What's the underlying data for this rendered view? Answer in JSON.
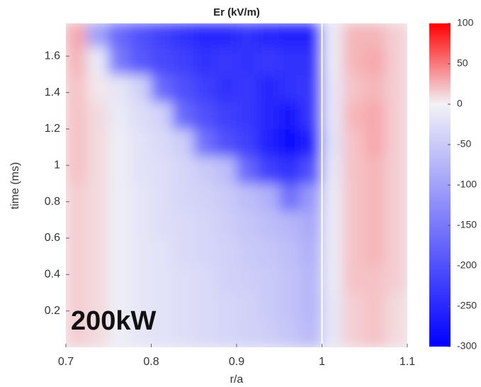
{
  "chart_data": {
    "type": "heatmap",
    "title": "Er (kV/m)",
    "x_label": "r/a",
    "y_label": "time (ms)",
    "annotation": "200kW",
    "x_edges": [
      0.7,
      0.725,
      0.75,
      0.775,
      0.8,
      0.825,
      0.85,
      0.875,
      0.9,
      0.925,
      0.95,
      0.975,
      1.0,
      1.025,
      1.05,
      1.075,
      1.1
    ],
    "y_edges": [
      0,
      0.15,
      0.3,
      0.45,
      0.6,
      0.75,
      0.9,
      1.05,
      1.2,
      1.35,
      1.5,
      1.65,
      1.78
    ],
    "values": [
      [
        15,
        10,
        -5,
        -15,
        -20,
        -25,
        -30,
        -35,
        -40,
        -45,
        -55,
        -70,
        -15,
        15,
        20,
        10
      ],
      [
        15,
        10,
        -5,
        -15,
        -20,
        -25,
        -30,
        -35,
        -40,
        -50,
        -60,
        -75,
        -15,
        15,
        20,
        10
      ],
      [
        15,
        10,
        -5,
        -15,
        -20,
        -25,
        -30,
        -40,
        -45,
        -50,
        -60,
        -75,
        -10,
        20,
        20,
        15
      ],
      [
        15,
        10,
        -5,
        -15,
        -20,
        -30,
        -35,
        -40,
        -50,
        -55,
        -65,
        -80,
        -10,
        20,
        25,
        15
      ],
      [
        15,
        10,
        -5,
        -15,
        -25,
        -30,
        -35,
        -45,
        -55,
        -65,
        -75,
        -90,
        -10,
        20,
        25,
        15
      ],
      [
        15,
        10,
        -5,
        -15,
        -25,
        -35,
        -40,
        -50,
        -65,
        -80,
        -160,
        -110,
        -10,
        20,
        25,
        15
      ],
      [
        20,
        10,
        -5,
        -20,
        -25,
        -35,
        -50,
        -65,
        -170,
        -220,
        -240,
        -200,
        -15,
        20,
        25,
        15
      ],
      [
        20,
        10,
        -5,
        -20,
        -30,
        -45,
        -160,
        -200,
        -220,
        -260,
        -290,
        -260,
        -20,
        20,
        30,
        15
      ],
      [
        20,
        10,
        -10,
        -25,
        -40,
        -170,
        -200,
        -220,
        -230,
        -250,
        -270,
        -230,
        -15,
        25,
        30,
        15
      ],
      [
        20,
        5,
        -15,
        -40,
        -170,
        -200,
        -220,
        -240,
        -230,
        -250,
        -240,
        -230,
        -15,
        20,
        25,
        15
      ],
      [
        25,
        -10,
        -150,
        -190,
        -210,
        -220,
        -240,
        -230,
        -240,
        -230,
        -240,
        -240,
        -10,
        25,
        30,
        15
      ],
      [
        30,
        -100,
        -170,
        -200,
        -220,
        -240,
        -250,
        -250,
        -240,
        -250,
        -260,
        -260,
        -10,
        25,
        25,
        15
      ]
    ],
    "xlim": [
      0.7,
      1.1
    ],
    "xticks": [
      0.7,
      0.8,
      0.9,
      1,
      1.1
    ],
    "ylim": [
      0,
      1.78
    ],
    "yticks": [
      0.2,
      0.4,
      0.6,
      0.8,
      1,
      1.2,
      1.4,
      1.6
    ],
    "reference_line_x": 1,
    "clim": [
      -300,
      100
    ],
    "cticks": [
      100,
      50,
      0,
      -50,
      -100,
      -150,
      -200,
      -250,
      -300
    ],
    "colormap": {
      "low": "#0000ff",
      "mid": "#f2f2f7",
      "high": "#ff0000",
      "center": 0
    }
  }
}
